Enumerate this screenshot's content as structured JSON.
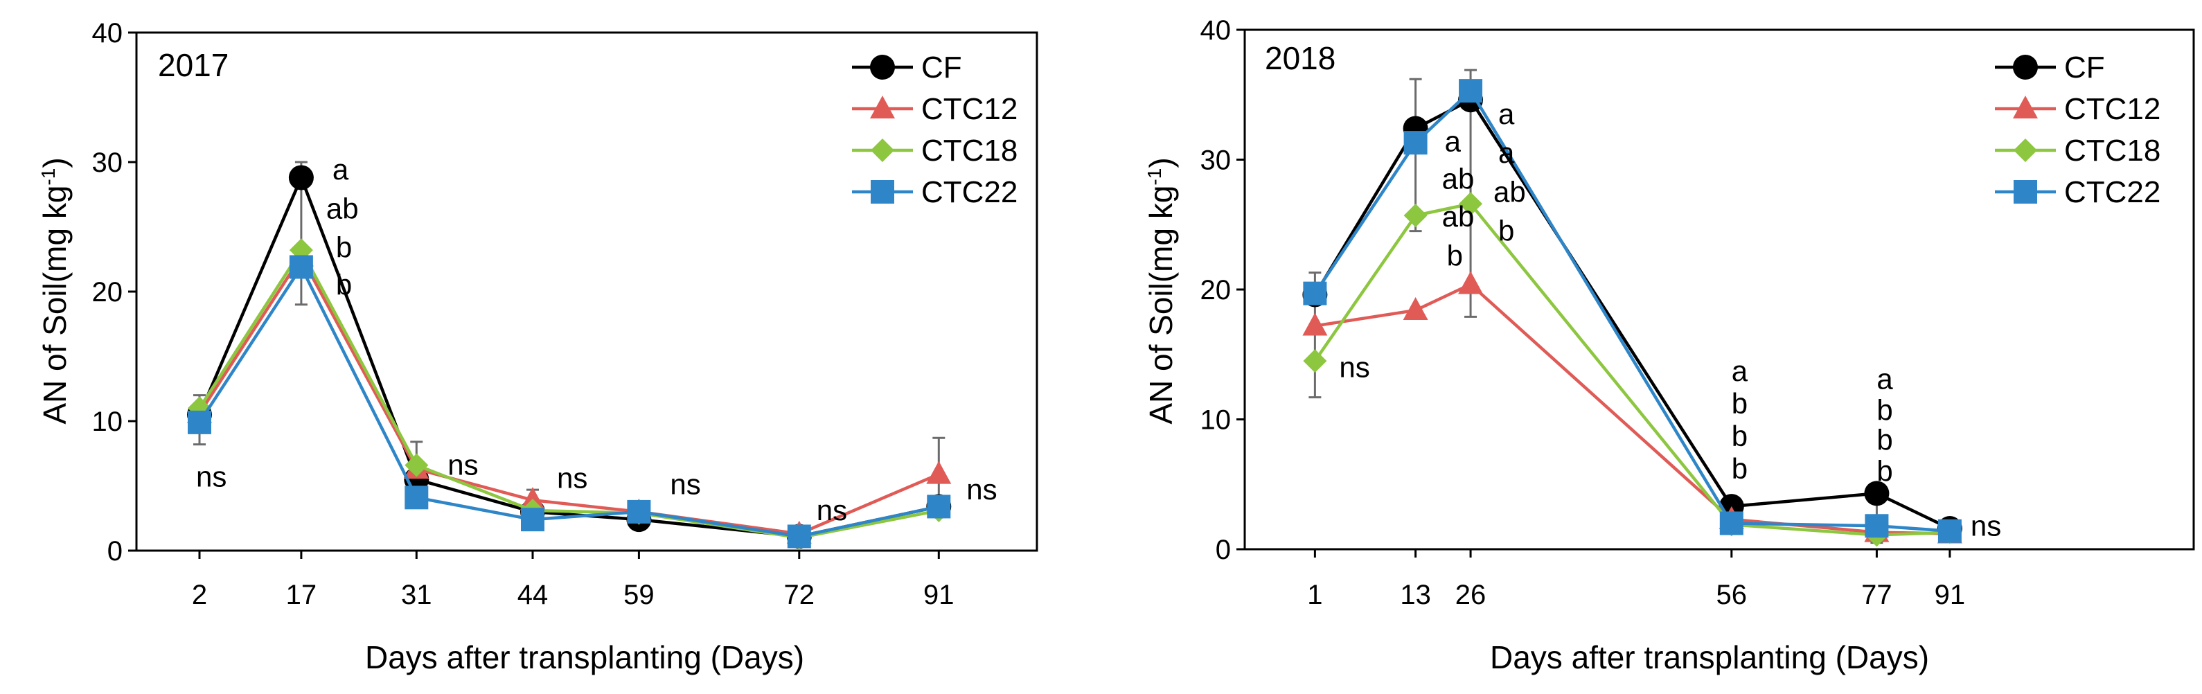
{
  "chart_data": [
    {
      "type": "line",
      "year_label": "2017",
      "xlabel": "Days after transplanting (Days)",
      "ylabel_main": "AN of Soil(mg kg",
      "ylabel_sup": "-1",
      "ylabel_close": ")",
      "ylim": [
        0,
        40
      ],
      "yticks": [
        "0",
        "10",
        "20",
        "30",
        "40"
      ],
      "x": [
        "2",
        "17",
        "31",
        "44",
        "59",
        "72",
        "91"
      ],
      "series": [
        {
          "name": "CF",
          "color": "#000000",
          "marker": "circle",
          "values": [
            10.5,
            28.8,
            5.5,
            3.0,
            2.4,
            1.1,
            3.4
          ]
        },
        {
          "name": "CTC12",
          "color": "#e05a56",
          "marker": "triangle",
          "values": [
            10.6,
            22.7,
            6.3,
            3.9,
            3.0,
            1.3,
            5.9
          ]
        },
        {
          "name": "CTC18",
          "color": "#8dc63f",
          "marker": "diamond",
          "values": [
            11.0,
            23.2,
            6.6,
            3.1,
            2.9,
            1.0,
            3.1
          ]
        },
        {
          "name": "CTC22",
          "color": "#2e86c8",
          "marker": "square",
          "values": [
            9.9,
            21.9,
            4.1,
            2.4,
            3.0,
            1.1,
            3.4
          ]
        }
      ],
      "error_bars": [
        {
          "x_index": 0,
          "lo": 8.2,
          "hi": 12.0
        },
        {
          "x_index": 1,
          "lo": 19.0,
          "hi": 30.0
        },
        {
          "x_index": 2,
          "lo": 3.3,
          "hi": 8.4
        },
        {
          "x_index": 3,
          "lo": 1.9,
          "hi": 4.7
        },
        {
          "x_index": 4,
          "lo": 2.0,
          "hi": 3.4
        },
        {
          "x_index": 5,
          "lo": 0.6,
          "hi": 1.7
        },
        {
          "x_index": 6,
          "lo": 2.6,
          "hi": 8.7
        }
      ],
      "annotations": [
        {
          "text": "a",
          "x": 17,
          "y": 29.4,
          "dx": 0.45
        },
        {
          "text": "ab",
          "x": 17,
          "y": 26.4,
          "dx": 0.36
        },
        {
          "text": "b",
          "x": 17,
          "y": 23.4,
          "dx": 0.5
        },
        {
          "text": "b",
          "x": 17,
          "y": 20.5,
          "dx": 0.5
        },
        {
          "text": "ns",
          "x": 2,
          "y": 5.7,
          "dx": -0.05
        },
        {
          "text": "ns",
          "x": 31,
          "y": 6.6,
          "dx": 0.45
        },
        {
          "text": "ns",
          "x": 44,
          "y": 5.6,
          "dx": 0.35
        },
        {
          "text": "ns",
          "x": 59,
          "y": 5.1,
          "dx": 0.45
        },
        {
          "text": "ns",
          "x": 72,
          "y": 3.1,
          "dx": 0.25
        },
        {
          "text": "ns",
          "x": 91,
          "y": 4.7,
          "dx": 0.4
        }
      ]
    },
    {
      "type": "line",
      "year_label": "2018",
      "xlabel": "Days after transplanting (Days)",
      "ylabel_main": "AN of Soil(mg kg",
      "ylabel_sup": "-1",
      "ylabel_close": ")",
      "ylim": [
        0,
        40
      ],
      "yticks": [
        "0",
        "10",
        "20",
        "30",
        "40"
      ],
      "x": [
        "1",
        "13",
        "26",
        "56",
        "77",
        "91"
      ],
      "series": [
        {
          "name": "CF",
          "color": "#000000",
          "marker": "circle",
          "values": [
            19.6,
            32.4,
            34.6,
            3.3,
            4.3,
            1.6
          ]
        },
        {
          "name": "CTC12",
          "color": "#e05a56",
          "marker": "triangle",
          "values": [
            17.2,
            18.4,
            20.4,
            2.3,
            1.3,
            1.2
          ]
        },
        {
          "name": "CTC18",
          "color": "#8dc63f",
          "marker": "diamond",
          "values": [
            14.5,
            25.7,
            26.6,
            1.9,
            1.1,
            1.3
          ]
        },
        {
          "name": "CTC22",
          "color": "#2e86c8",
          "marker": "square",
          "values": [
            19.7,
            31.3,
            35.3,
            2.0,
            1.8,
            1.4
          ]
        }
      ],
      "error_bars": [
        {
          "x_index": 0,
          "lo": 11.7,
          "hi": 21.3
        },
        {
          "x_index": 1,
          "lo": 24.5,
          "hi": 36.2
        },
        {
          "x_index": 2,
          "lo": 17.9,
          "hi": 36.9
        },
        {
          "x_index": 3,
          "lo": 1.4,
          "hi": 3.8
        },
        {
          "x_index": 4,
          "lo": 0.5,
          "hi": 4.9
        },
        {
          "x_index": 5,
          "lo": 0.8,
          "hi": 2.0
        }
      ],
      "annotations": [
        {
          "text": "a",
          "x": 26,
          "y": 33.5,
          "dx": 0.4
        },
        {
          "text": "a",
          "x": 26,
          "y": 30.5,
          "dx": 0.4
        },
        {
          "text": "ab",
          "x": 26,
          "y": 27.5,
          "dx": 0.33
        },
        {
          "text": "b",
          "x": 26,
          "y": 24.5,
          "dx": 0.4
        },
        {
          "text": "a",
          "x": 13,
          "y": 31.4,
          "dx": 0.42
        },
        {
          "text": "ab",
          "x": 13,
          "y": 28.5,
          "dx": 0.38
        },
        {
          "text": "ab",
          "x": 13,
          "y": 25.6,
          "dx": 0.38
        },
        {
          "text": "b",
          "x": 13,
          "y": 22.6,
          "dx": 0.45
        },
        {
          "text": "ns",
          "x": 1,
          "y": 14.0,
          "dx": 0.35
        },
        {
          "text": "a",
          "x": 56,
          "y": 13.7,
          "dx": 0.0
        },
        {
          "text": "b",
          "x": 56,
          "y": 11.2,
          "dx": 0.0
        },
        {
          "text": "b",
          "x": 56,
          "y": 8.7,
          "dx": 0.0
        },
        {
          "text": "b",
          "x": 56,
          "y": 6.2,
          "dx": 0.0
        },
        {
          "text": "a",
          "x": 77,
          "y": 13.1,
          "dx": 0.0
        },
        {
          "text": "b",
          "x": 77,
          "y": 10.7,
          "dx": 0.0
        },
        {
          "text": "b",
          "x": 77,
          "y": 8.4,
          "dx": 0.0
        },
        {
          "text": "b",
          "x": 77,
          "y": 6.0,
          "dx": 0.0
        },
        {
          "text": "ns",
          "x": 91,
          "y": 1.8,
          "dx": 0.3
        }
      ]
    }
  ]
}
